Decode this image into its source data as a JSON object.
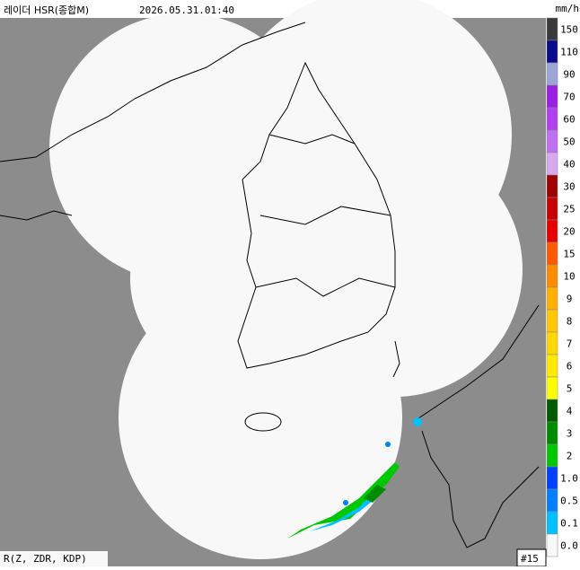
{
  "header": {
    "title": "레이더 HSR(종합M)",
    "timestamp": "2026.05.31.01:40",
    "unit": "mm/h"
  },
  "legend": [
    {
      "label": "150",
      "color": "#3a3a3a"
    },
    {
      "label": "110",
      "color": "#0a0a8c"
    },
    {
      "label": "90",
      "color": "#9ba6d6"
    },
    {
      "label": "70",
      "color": "#9a20e6"
    },
    {
      "label": "60",
      "color": "#b040f0"
    },
    {
      "label": "50",
      "color": "#c070f2"
    },
    {
      "label": "40",
      "color": "#d8a8f0"
    },
    {
      "label": "30",
      "color": "#a00000"
    },
    {
      "label": "25",
      "color": "#c80000"
    },
    {
      "label": "20",
      "color": "#e80000"
    },
    {
      "label": "15",
      "color": "#ff5a00"
    },
    {
      "label": "10",
      "color": "#ff8c00"
    },
    {
      "label": "9",
      "color": "#ffb000"
    },
    {
      "label": "8",
      "color": "#ffc800"
    },
    {
      "label": "7",
      "color": "#ffd800"
    },
    {
      "label": "6",
      "color": "#ffea00"
    },
    {
      "label": "5",
      "color": "#ffff00"
    },
    {
      "label": "4",
      "color": "#005a00"
    },
    {
      "label": "3",
      "color": "#008c00"
    },
    {
      "label": "2",
      "color": "#00c800"
    },
    {
      "label": "1.0",
      "color": "#0040ff"
    },
    {
      "label": "0.5",
      "color": "#0080ff"
    },
    {
      "label": "0.1",
      "color": "#00c0ff"
    },
    {
      "label": "0.0",
      "color": "#f8f8f8"
    }
  ],
  "footer": {
    "method": "R(Z, ZDR, KDP)",
    "frame": "#15"
  }
}
